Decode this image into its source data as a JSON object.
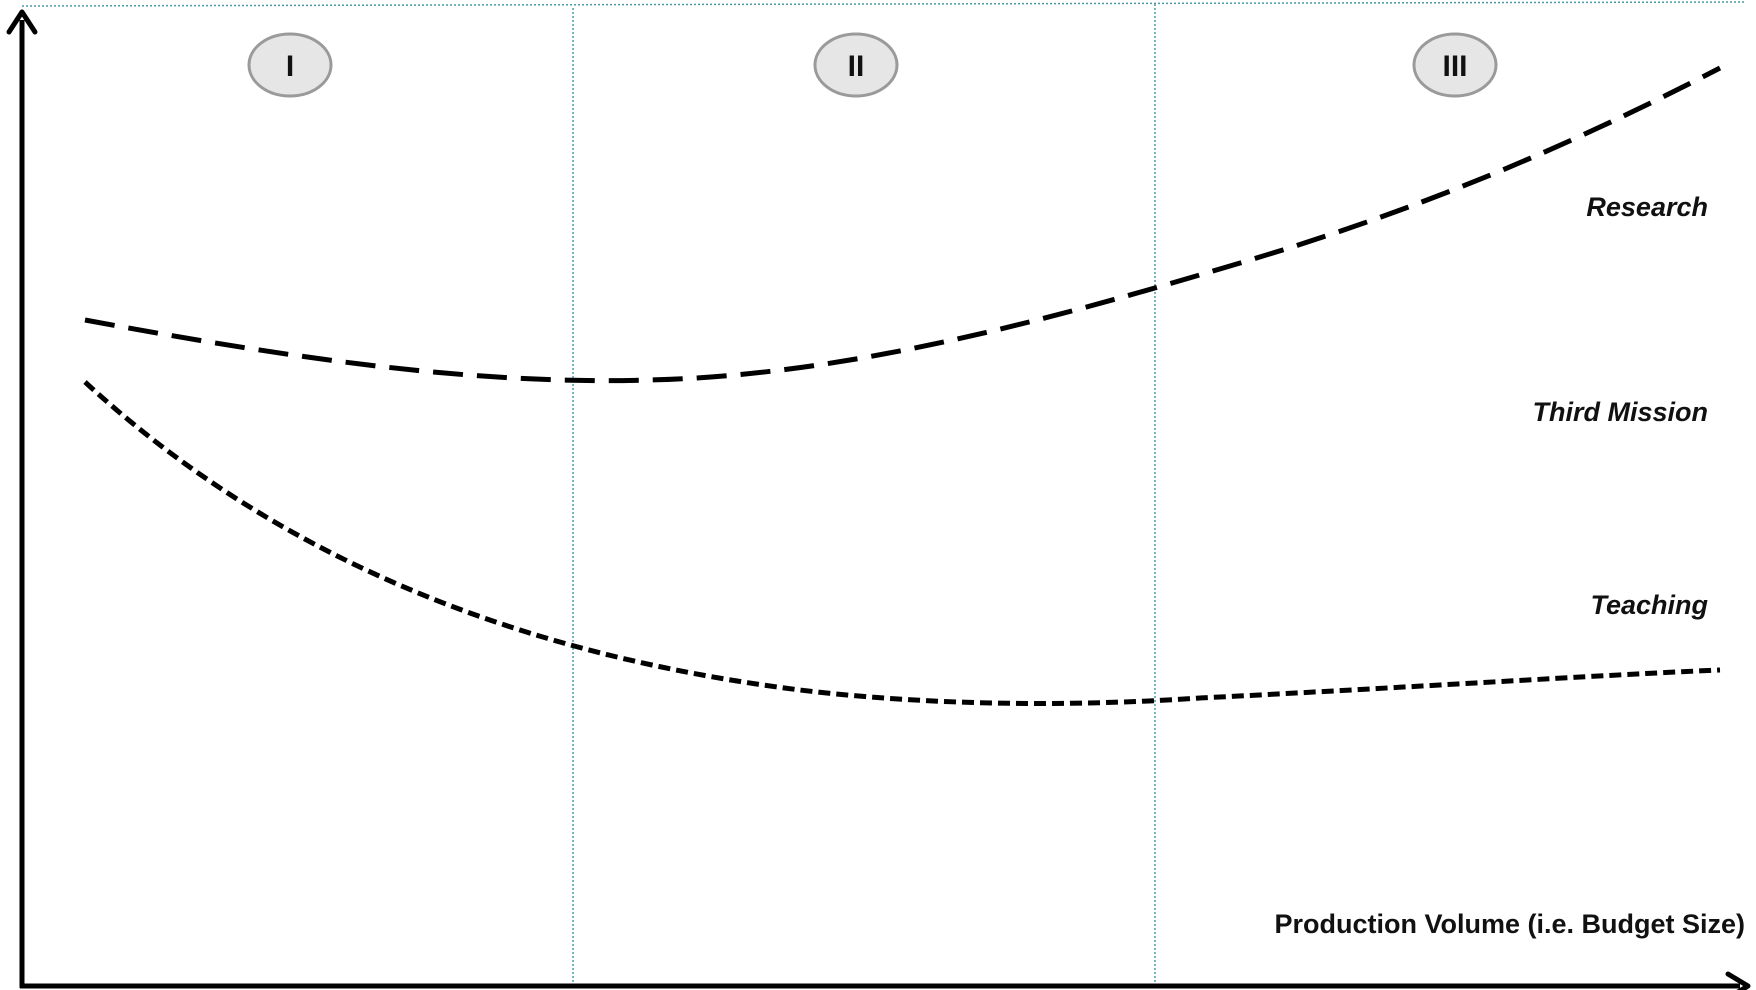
{
  "regions": [
    {
      "label": "I"
    },
    {
      "label": "II"
    },
    {
      "label": "III"
    }
  ],
  "curve_labels": {
    "research": "Research",
    "third_mission": "Third Mission",
    "teaching": "Teaching"
  },
  "axes": {
    "x_label": "Production Volume (i.e. Budget Size)"
  },
  "colors": {
    "axis": "#000000",
    "divider": "#4a9aa8",
    "region_badge_fill": "#e6e6e6",
    "region_badge_stroke": "#9a9a9a"
  }
}
